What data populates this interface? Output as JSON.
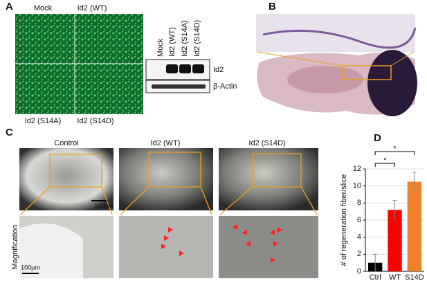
{
  "panel_a": {
    "label": "A",
    "micrograph_labels": [
      "Mock",
      "Id2 (WT)",
      "Id2 (S14A)",
      "Id2 (S14D)"
    ],
    "blot_lanes": [
      "Mock",
      "Id2 (WT)",
      "Id2 (S14A)",
      "Id2 (S14D)"
    ],
    "blot_rows": [
      "Id2",
      "β-Actin"
    ]
  },
  "panel_b": {
    "label": "B"
  },
  "panel_c": {
    "label": "C",
    "columns": [
      "Control",
      "Id2 (WT)",
      "Id2 (S14D)"
    ],
    "row_label": "Magnification",
    "scale_bars": [
      "100μm",
      "100μm"
    ]
  },
  "panel_d": {
    "label": "D"
  },
  "chart_data": {
    "type": "bar",
    "ylabel": "# of regeneration fiber/slice",
    "categories": [
      "Ctrl",
      "WT",
      "S14D"
    ],
    "values": [
      1,
      7.2,
      10.5
    ],
    "errors": [
      1,
      1.1,
      1.1
    ],
    "colors": [
      "#000000",
      "#ff0000",
      "#f0802a"
    ],
    "ylim": [
      0,
      12
    ],
    "yticks": [
      0,
      2,
      4,
      6,
      8,
      10,
      12
    ],
    "grid": true,
    "annotations": [
      "*",
      "*"
    ]
  }
}
